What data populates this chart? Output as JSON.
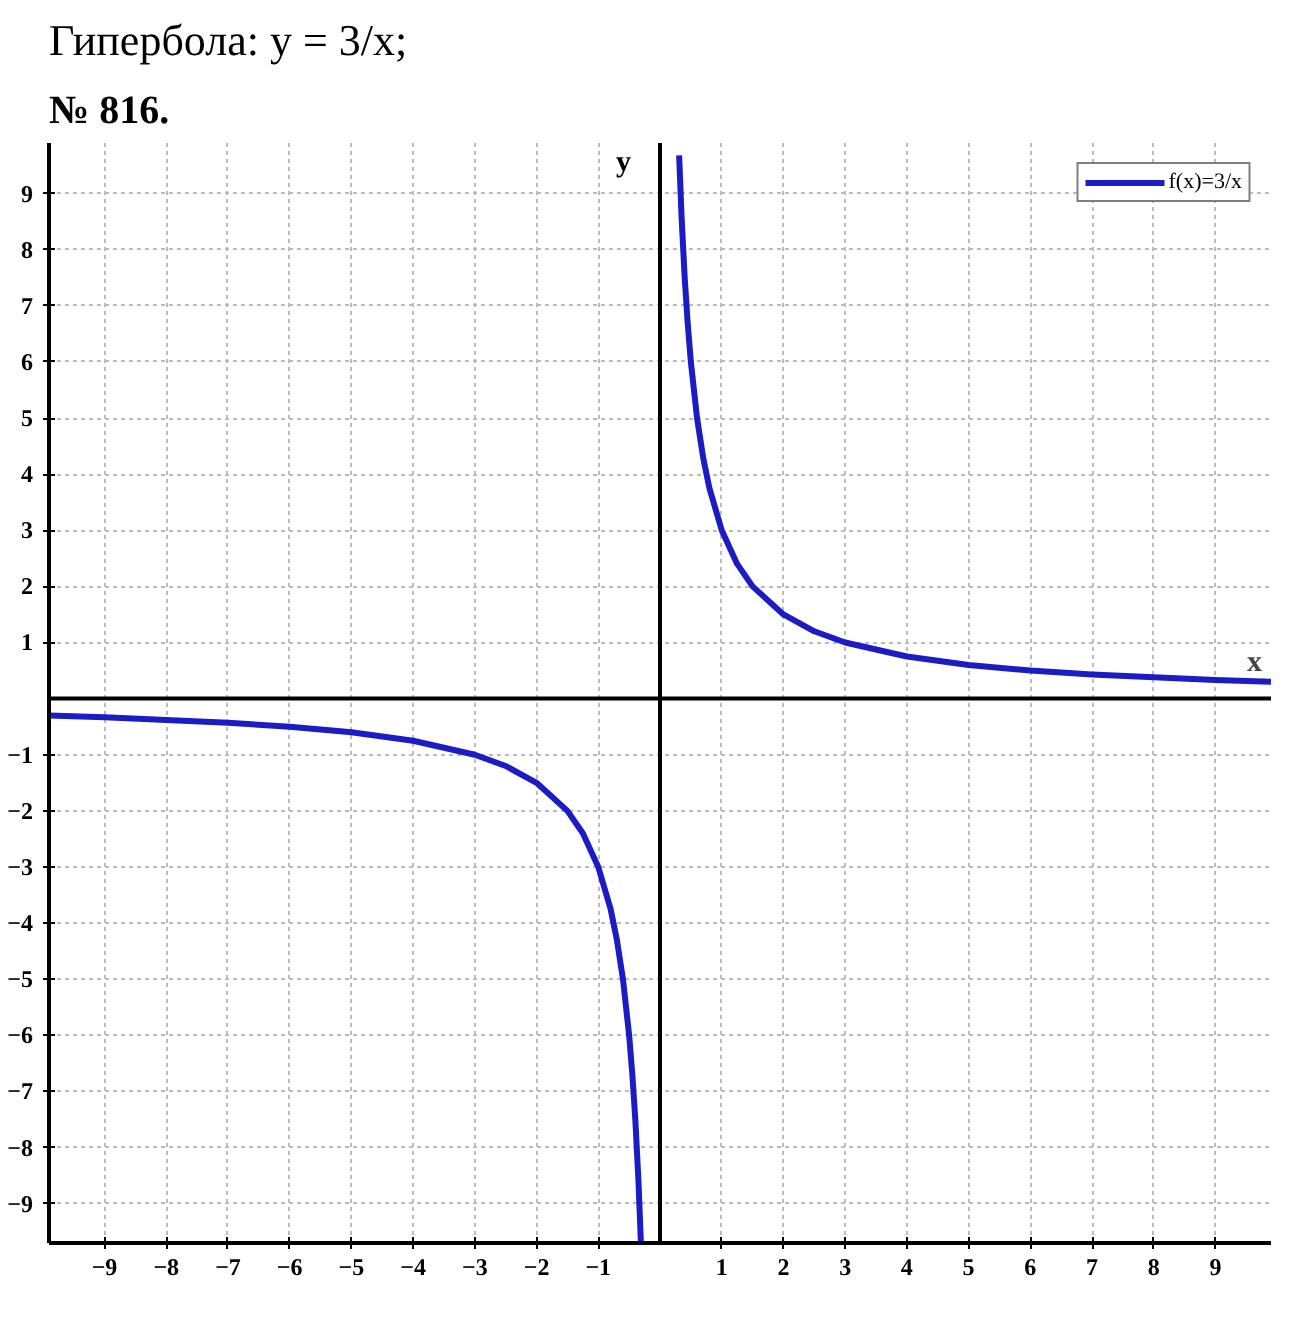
{
  "chart_data": {
    "type": "line",
    "title": "Гипербола: y = 3/x;",
    "annotations": [
      "№ 816."
    ],
    "xlabel": "x",
    "ylabel": "y",
    "x": [
      -9.9,
      -9,
      -8,
      -7,
      -6,
      -5,
      -4,
      -3,
      -2.5,
      -2,
      -1.5,
      -1.25,
      -1,
      -0.8,
      -0.7,
      -0.6,
      -0.5,
      -0.45,
      -0.4,
      -0.35,
      -0.31,
      0,
      0.31,
      0.35,
      0.4,
      0.45,
      0.5,
      0.6,
      0.7,
      0.8,
      1,
      1.25,
      1.5,
      2,
      2.5,
      3,
      4,
      5,
      6,
      7,
      8,
      9,
      9.9
    ],
    "series": [
      {
        "name": "f(x)=3/x",
        "color": "#1c1cc4",
        "values": [
          -0.3,
          -0.33,
          -0.38,
          -0.43,
          -0.5,
          -0.6,
          -0.75,
          -1,
          -1.2,
          -1.5,
          -2,
          -2.4,
          -3,
          -3.75,
          -4.29,
          -5,
          -6,
          -6.67,
          -7.5,
          -8.57,
          -9.68,
          null,
          9.68,
          8.57,
          7.5,
          6.67,
          6,
          5,
          4.29,
          3.75,
          3,
          2.4,
          2,
          1.5,
          1.2,
          1,
          0.75,
          0.6,
          0.5,
          0.43,
          0.38,
          0.33,
          0.3
        ]
      }
    ],
    "xlim": [
      -9.9,
      9.9
    ],
    "ylim": [
      -9.7,
      9.9
    ],
    "xticks": [
      -9,
      -8,
      -7,
      -6,
      -5,
      -4,
      -3,
      -2,
      -1,
      1,
      2,
      3,
      4,
      5,
      6,
      7,
      8,
      9
    ],
    "yticks": [
      -9,
      -8,
      -7,
      -6,
      -5,
      -4,
      -3,
      -2,
      -1,
      1,
      2,
      3,
      4,
      5,
      6,
      7,
      8,
      9
    ],
    "grid": true,
    "legend": "top right",
    "marker": "none",
    "line_style": "solid"
  }
}
